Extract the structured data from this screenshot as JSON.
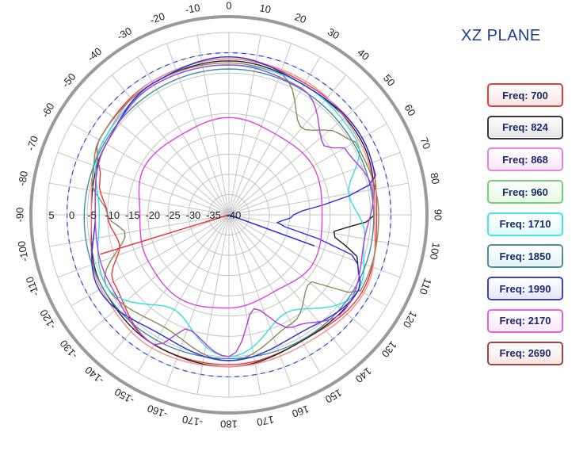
{
  "title": "XZ PLANE",
  "legend": [
    {
      "label": "Freq: 700",
      "color": "#e8383a",
      "fill": "#fbe3e3"
    },
    {
      "label": "Freq: 824",
      "color": "#3a3a3a",
      "fill": "#e4e4e8"
    },
    {
      "label": "Freq: 868",
      "color": "#ee7fe0",
      "fill": "#fbe6f8"
    },
    {
      "label": "Freq: 960",
      "color": "#6fd56f",
      "fill": "#e6f8e6"
    },
    {
      "label": "Freq: 1710",
      "color": "#41e6e6",
      "fill": "#e2fbfb"
    },
    {
      "label": "Freq: 1850",
      "color": "#4a8f9c",
      "fill": "#e3f3f5"
    },
    {
      "label": "Freq: 1990",
      "color": "#3c3cd8",
      "fill": "#e6e6fb"
    },
    {
      "label": "Freq: 2170",
      "color": "#e060e0",
      "fill": "#fbe6fb"
    },
    {
      "label": "Freq: 2690",
      "color": "#a84040",
      "fill": "#f8e6e2"
    }
  ],
  "chart_data": {
    "type": "polar",
    "angle_labels": [
      "0",
      "10",
      "20",
      "30",
      "40",
      "50",
      "60",
      "70",
      "80",
      "90",
      "100",
      "110",
      "120",
      "130",
      "140",
      "150",
      "160",
      "170",
      "180",
      "-170",
      "-160",
      "-150",
      "-140",
      "-130",
      "-120",
      "-110",
      "-100",
      "-90",
      "-80",
      "-70",
      "-60",
      "-50",
      "-40",
      "-30",
      "-20",
      "-10"
    ],
    "radial_labels": [
      "5",
      "0",
      "-5",
      "-10",
      "-15",
      "-20",
      "-25",
      "-30",
      "-35",
      "-40"
    ],
    "radial_range": [
      -40,
      5
    ],
    "reference_level": 0,
    "grid": true,
    "angle_step": 10,
    "series": [
      {
        "name": "Freq: 700",
        "color": "#e8383a",
        "angles": [
          0,
          30,
          60,
          90,
          120,
          150,
          180,
          210,
          240,
          255,
          270,
          285,
          300,
          330
        ],
        "values": [
          -1.5,
          -2.5,
          -2,
          -3.5,
          -2,
          -4,
          -3,
          -3,
          -7,
          -12,
          -10,
          -7,
          -3,
          -2
        ]
      },
      {
        "name": "Freq: 824",
        "color": "#222222",
        "angles": [
          0,
          30,
          60,
          90,
          100,
          110,
          120,
          150,
          180,
          210,
          240,
          270,
          300,
          330
        ],
        "values": [
          -2,
          -3,
          -2.5,
          -4,
          -14,
          -6,
          -3,
          -4,
          -2.5,
          -3,
          -4,
          -6,
          -5,
          -2.5
        ]
      },
      {
        "name": "Freq: 868",
        "color": "#f28b8b",
        "angles": [
          0,
          30,
          60,
          90,
          120,
          150,
          180,
          210,
          240,
          270,
          300,
          330
        ],
        "values": [
          -1.5,
          -2,
          -3,
          -4,
          -1.5,
          -3,
          -2.5,
          -2,
          -3.5,
          -6,
          -4,
          -2
        ]
      },
      {
        "name": "Freq: 960",
        "color": "#8a8a5a",
        "angles": [
          0,
          20,
          40,
          55,
          60,
          90,
          120,
          130,
          150,
          180,
          210,
          240,
          260,
          270,
          285,
          300,
          330
        ],
        "values": [
          -2.5,
          -3,
          -12,
          -6,
          -4,
          -3,
          -2.5,
          -14,
          -9,
          -4,
          -8,
          -5,
          -14,
          -10,
          -5,
          -3,
          -2.5
        ]
      },
      {
        "name": "Freq: 1710",
        "color": "#2fe0e0",
        "angles": [
          0,
          30,
          60,
          80,
          100,
          120,
          150,
          180,
          210,
          240,
          270,
          300,
          330
        ],
        "values": [
          -3,
          -3,
          -3.5,
          -10,
          -6,
          -3,
          -12,
          -5,
          -13,
          -5,
          -8,
          -4,
          -3
        ]
      },
      {
        "name": "Freq: 1850",
        "color": "#3f8e9c",
        "angles": [
          0,
          60,
          120,
          180,
          240,
          300
        ],
        "values": [
          -4,
          -4.5,
          -4,
          -4.5,
          -4,
          -4.5
        ]
      },
      {
        "name": "Freq: 1990",
        "color": "#2c2ce0",
        "angles": [
          0,
          30,
          60,
          75,
          90,
          100,
          110,
          120,
          150,
          180,
          210,
          240,
          270,
          300,
          330
        ],
        "values": [
          -1,
          -3,
          -2,
          -2.5,
          -24,
          -28,
          -6,
          -3,
          -6,
          -4,
          -6,
          -3,
          -7,
          -5,
          -2.5
        ]
      },
      {
        "name": "Freq: 2170",
        "color": "#b13ed8",
        "angles": [
          0,
          30,
          55,
          60,
          80,
          100,
          130,
          150,
          165,
          180,
          200,
          210,
          240,
          270,
          300,
          330
        ],
        "values": [
          -3,
          -4,
          -11,
          -7,
          -4,
          -6,
          -3,
          -8,
          -16,
          -5,
          -10,
          -3,
          -6,
          -7,
          -5,
          -3
        ]
      },
      {
        "name": "Freq: 2690",
        "color": "#e040e0",
        "angles": [
          0,
          30,
          60,
          90,
          120,
          150,
          180,
          210,
          240,
          270,
          300,
          330
        ],
        "values": [
          -16,
          -17,
          -16,
          -17,
          -16,
          -18,
          -17,
          -16,
          -17,
          -18,
          -16,
          -17
        ]
      }
    ]
  }
}
